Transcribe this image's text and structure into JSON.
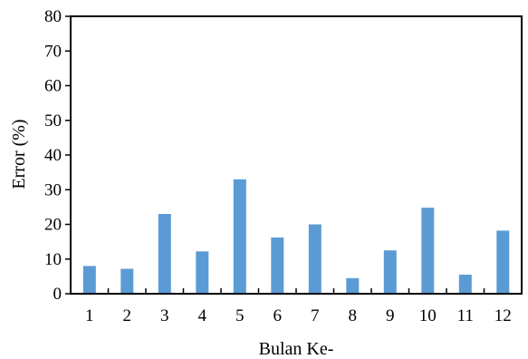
{
  "chart_data": {
    "type": "bar",
    "title": "",
    "xlabel": "Bulan Ke-",
    "ylabel": "Error (%)",
    "categories": [
      "1",
      "2",
      "3",
      "4",
      "5",
      "6",
      "7",
      "8",
      "9",
      "10",
      "11",
      "12"
    ],
    "values": [
      8,
      7.2,
      23,
      12.2,
      33,
      16.2,
      20,
      4.5,
      12.5,
      24.8,
      5.5,
      18.2
    ],
    "ylim": [
      0,
      80
    ],
    "yticks": [
      0,
      10,
      20,
      30,
      40,
      50,
      60,
      70,
      80
    ],
    "grid": false,
    "legend": "none",
    "bar_color": "#5B9BD5"
  }
}
